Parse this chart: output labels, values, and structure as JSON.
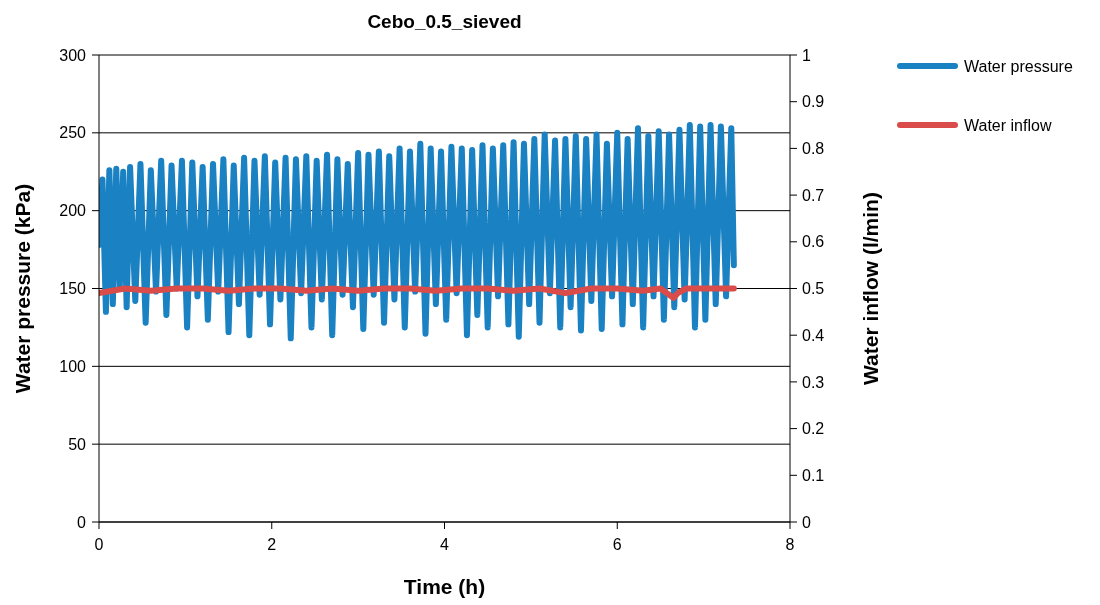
{
  "chart_data": {
    "type": "line",
    "title": "Cebo_0.5_sieved",
    "xlabel": "Time (h)",
    "ylabel": "Water pressure (kPa)",
    "y2label": "Water inflow (l/min)",
    "xlim": [
      0,
      8
    ],
    "xticks": [
      0,
      2,
      4,
      6,
      8
    ],
    "ylim": [
      0,
      300
    ],
    "yticks": [
      0,
      50,
      100,
      150,
      200,
      250,
      300
    ],
    "y2lim": [
      0,
      1
    ],
    "y2ticks": [
      0,
      0.1,
      0.2,
      0.3,
      0.4,
      0.5,
      0.6,
      0.7,
      0.8,
      0.9,
      1
    ],
    "grid": "y",
    "legend": "right",
    "line_style": "solid",
    "series": [
      {
        "name": "Water pressure",
        "color": "#1a81c2",
        "x": [
          0,
          0.04,
          0.08,
          0.12,
          0.16,
          0.2,
          0.24,
          0.28,
          0.32,
          0.36,
          0.42,
          0.48,
          0.54,
          0.6,
          0.66,
          0.72,
          0.78,
          0.84,
          0.9,
          0.96,
          1.02,
          1.08,
          1.14,
          1.2,
          1.26,
          1.32,
          1.38,
          1.44,
          1.5,
          1.56,
          1.62,
          1.68,
          1.74,
          1.8,
          1.86,
          1.92,
          1.98,
          2.04,
          2.1,
          2.16,
          2.22,
          2.28,
          2.34,
          2.4,
          2.46,
          2.52,
          2.58,
          2.64,
          2.7,
          2.76,
          2.82,
          2.88,
          2.94,
          3.0,
          3.06,
          3.12,
          3.18,
          3.24,
          3.3,
          3.36,
          3.42,
          3.48,
          3.54,
          3.6,
          3.66,
          3.72,
          3.78,
          3.84,
          3.9,
          3.96,
          4.02,
          4.08,
          4.14,
          4.2,
          4.26,
          4.32,
          4.38,
          4.44,
          4.5,
          4.56,
          4.62,
          4.68,
          4.74,
          4.8,
          4.86,
          4.92,
          4.98,
          5.04,
          5.1,
          5.16,
          5.22,
          5.28,
          5.34,
          5.4,
          5.46,
          5.52,
          5.58,
          5.64,
          5.7,
          5.76,
          5.82,
          5.88,
          5.94,
          6.0,
          6.06,
          6.12,
          6.18,
          6.24,
          6.3,
          6.36,
          6.42,
          6.48,
          6.54,
          6.6,
          6.66,
          6.72,
          6.78,
          6.84,
          6.9,
          6.96,
          7.02,
          7.08,
          7.14,
          7.2,
          7.26,
          7.32,
          7.35
        ],
        "values": [
          178,
          220,
          135,
          226,
          140,
          227,
          150,
          225,
          138,
          228,
          142,
          230,
          128,
          226,
          148,
          232,
          133,
          229,
          150,
          232,
          125,
          231,
          145,
          228,
          130,
          230,
          148,
          233,
          122,
          229,
          140,
          234,
          120,
          232,
          146,
          235,
          127,
          231,
          143,
          234,
          118,
          233,
          147,
          235,
          125,
          232,
          143,
          236,
          120,
          233,
          146,
          230,
          138,
          237,
          124,
          236,
          146,
          238,
          128,
          235,
          143,
          240,
          125,
          238,
          148,
          243,
          121,
          240,
          140,
          238,
          130,
          241,
          147,
          240,
          120,
          239,
          133,
          242,
          125,
          240,
          145,
          242,
          127,
          244,
          119,
          243,
          140,
          246,
          128,
          249,
          147,
          245,
          125,
          246,
          138,
          248,
          123,
          246,
          142,
          249,
          124,
          243,
          145,
          250,
          127,
          246,
          140,
          253,
          125,
          248,
          145,
          251,
          130,
          249,
          138,
          252,
          143,
          255,
          125,
          254,
          130,
          255,
          140,
          254,
          145,
          253,
          165
        ]
      },
      {
        "name": "Water inflow",
        "color": "#d94c4a",
        "axis": "y2",
        "x": [
          0,
          0.3,
          0.6,
          0.9,
          1.2,
          1.5,
          1.8,
          2.1,
          2.4,
          2.7,
          3.0,
          3.3,
          3.6,
          3.9,
          4.2,
          4.5,
          4.8,
          5.1,
          5.4,
          5.7,
          6.0,
          6.3,
          6.5,
          6.65,
          6.7,
          6.8,
          7.0,
          7.2,
          7.35
        ],
        "values": [
          0.49,
          0.5,
          0.495,
          0.5,
          0.5,
          0.495,
          0.5,
          0.5,
          0.495,
          0.5,
          0.495,
          0.5,
          0.5,
          0.495,
          0.5,
          0.5,
          0.495,
          0.5,
          0.49,
          0.5,
          0.5,
          0.495,
          0.5,
          0.48,
          0.49,
          0.5,
          0.5,
          0.5,
          0.5
        ]
      }
    ]
  }
}
